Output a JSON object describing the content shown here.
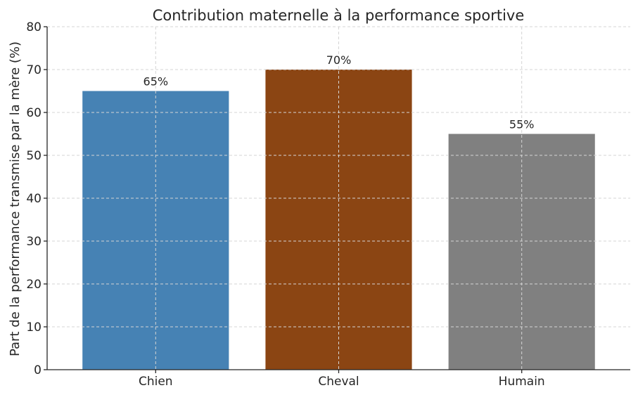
{
  "chart_data": {
    "type": "bar",
    "title": "Contribution maternelle à la performance sportive",
    "xlabel": "",
    "ylabel": "Part de la performance transmise par la mère (%)",
    "categories": [
      "Chien",
      "Cheval",
      "Humain"
    ],
    "values": [
      65,
      70,
      55
    ],
    "data_labels": [
      "65%",
      "70%",
      "55%"
    ],
    "colors": [
      "#4682b4",
      "#8b4513",
      "#808080"
    ],
    "ylim": [
      0,
      80
    ],
    "yticks": [
      "0",
      "10",
      "20",
      "30",
      "40",
      "50",
      "60",
      "70",
      "80"
    ],
    "grid": true,
    "legend": "none"
  }
}
